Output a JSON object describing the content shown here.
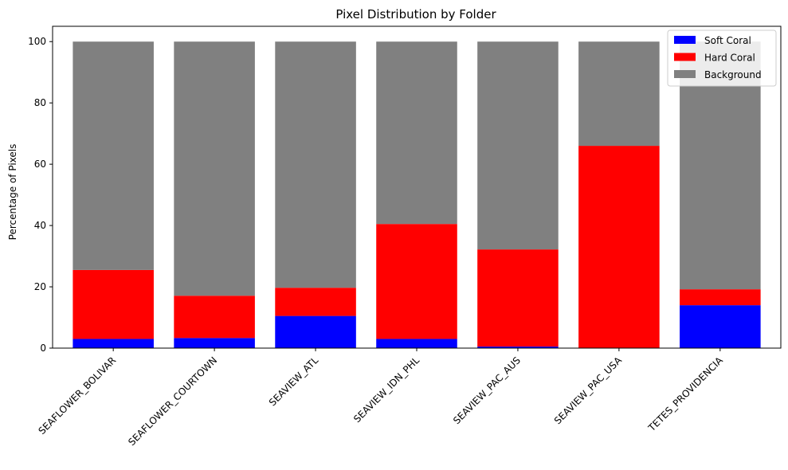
{
  "chart_data": {
    "type": "bar",
    "stacked": true,
    "title": "Pixel Distribution by Folder",
    "xlabel": "",
    "ylabel": "Percentage of Pixels",
    "ylim": [
      0,
      105
    ],
    "yticks": [
      0,
      20,
      40,
      60,
      80,
      100
    ],
    "grid": false,
    "legend_position": "top-right",
    "categories": [
      "SEAFLOWER_BOLIVAR",
      "SEAFLOWER_COURTOWN",
      "SEAVIEW_ATL",
      "SEAVIEW_IDN_PHL",
      "SEAVIEW_PAC_AUS",
      "SEAVIEW_PAC_USA",
      "TETES_PROVIDENCIA"
    ],
    "series": [
      {
        "name": "Soft Coral",
        "color": "#0000ff",
        "values": [
          3.0,
          3.3,
          10.5,
          3.0,
          0.5,
          0.0,
          14.0
        ]
      },
      {
        "name": "Hard Coral",
        "color": "#ff0000",
        "values": [
          22.5,
          13.8,
          9.2,
          37.5,
          31.7,
          66.0,
          5.2
        ]
      },
      {
        "name": "Background",
        "color": "#808080",
        "values": [
          74.5,
          82.9,
          80.3,
          59.5,
          67.8,
          34.0,
          80.8
        ]
      }
    ]
  }
}
